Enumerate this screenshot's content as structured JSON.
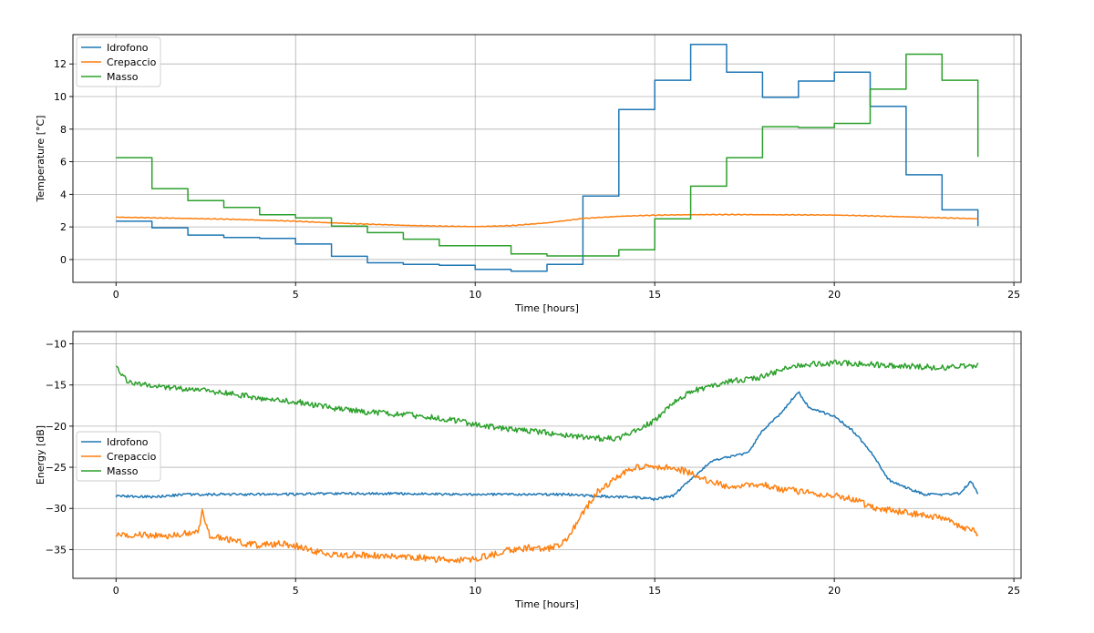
{
  "colors": {
    "Idrofono": "#1f77b4",
    "Crepaccio": "#ff7f0e",
    "Masso": "#2ca02c"
  },
  "chart_data": [
    {
      "type": "line",
      "xlabel": "Time [hours]",
      "ylabel": "Temperature [°C]",
      "xlim": [
        -1.2,
        25.2
      ],
      "ylim": [
        -1.4,
        13.8
      ],
      "xticks": [
        0,
        5,
        10,
        15,
        20,
        25
      ],
      "yticks": [
        0,
        2,
        4,
        6,
        8,
        10,
        12
      ],
      "xtick_labels": [
        "0",
        "5",
        "10",
        "15",
        "20",
        "25"
      ],
      "ytick_labels": [
        "0",
        "2",
        "4",
        "6",
        "8",
        "10",
        "12"
      ],
      "grid": true,
      "legend_position": "top-left",
      "series": [
        {
          "name": "Idrofono",
          "style": "step",
          "points": [
            [
              0,
              2.35
            ],
            [
              1,
              1.95
            ],
            [
              2,
              1.5
            ],
            [
              3,
              1.35
            ],
            [
              4,
              1.3
            ],
            [
              5,
              0.95
            ],
            [
              6,
              0.2
            ],
            [
              7,
              -0.2
            ],
            [
              8,
              -0.3
            ],
            [
              9,
              -0.35
            ],
            [
              10,
              -0.6
            ],
            [
              11,
              -0.72
            ],
            [
              12,
              -0.3
            ],
            [
              13,
              3.9
            ],
            [
              14,
              9.2
            ],
            [
              15,
              11.0
            ],
            [
              16,
              13.2
            ],
            [
              17,
              11.5
            ],
            [
              18,
              9.95
            ],
            [
              19,
              10.95
            ],
            [
              20,
              11.5
            ],
            [
              21,
              9.4
            ],
            [
              22,
              5.2
            ],
            [
              23,
              3.05
            ],
            [
              24,
              2.05
            ]
          ]
        },
        {
          "name": "Crepaccio",
          "style": "smooth",
          "points": [
            [
              0,
              2.6
            ],
            [
              1,
              2.56
            ],
            [
              2,
              2.52
            ],
            [
              3,
              2.48
            ],
            [
              4,
              2.42
            ],
            [
              5,
              2.35
            ],
            [
              6,
              2.25
            ],
            [
              7,
              2.17
            ],
            [
              8,
              2.1
            ],
            [
              9,
              2.05
            ],
            [
              10,
              2.02
            ],
            [
              11,
              2.08
            ],
            [
              12,
              2.25
            ],
            [
              13,
              2.52
            ],
            [
              14,
              2.65
            ],
            [
              15,
              2.72
            ],
            [
              16,
              2.75
            ],
            [
              17,
              2.76
            ],
            [
              18,
              2.75
            ],
            [
              19,
              2.74
            ],
            [
              20,
              2.73
            ],
            [
              21,
              2.68
            ],
            [
              22,
              2.62
            ],
            [
              23,
              2.56
            ],
            [
              24,
              2.5
            ]
          ]
        },
        {
          "name": "Masso",
          "style": "step",
          "points": [
            [
              0,
              6.25
            ],
            [
              1,
              4.35
            ],
            [
              2,
              3.62
            ],
            [
              3,
              3.2
            ],
            [
              4,
              2.75
            ],
            [
              5,
              2.55
            ],
            [
              6,
              2.05
            ],
            [
              7,
              1.65
            ],
            [
              8,
              1.25
            ],
            [
              9,
              0.85
            ],
            [
              10,
              0.85
            ],
            [
              11,
              0.35
            ],
            [
              12,
              0.22
            ],
            [
              13,
              0.22
            ],
            [
              14,
              0.6
            ],
            [
              15,
              2.5
            ],
            [
              16,
              4.5
            ],
            [
              17,
              6.25
            ],
            [
              18,
              8.15
            ],
            [
              19,
              8.1
            ],
            [
              20,
              8.35
            ],
            [
              21,
              10.45
            ],
            [
              22,
              12.6
            ],
            [
              23,
              11.0
            ],
            [
              24,
              6.3
            ]
          ]
        }
      ]
    },
    {
      "type": "line",
      "xlabel": "Time [hours]",
      "ylabel": "Energy [dB]",
      "xlim": [
        -1.2,
        25.2
      ],
      "ylim": [
        -38.5,
        -8.5
      ],
      "xticks": [
        0,
        5,
        10,
        15,
        20,
        25
      ],
      "yticks": [
        -35,
        -30,
        -25,
        -20,
        -15,
        -10
      ],
      "xtick_labels": [
        "0",
        "5",
        "10",
        "15",
        "20",
        "25"
      ],
      "ytick_labels": [
        "−35",
        "−30",
        "−25",
        "−20",
        "−15",
        "−10"
      ],
      "grid": true,
      "legend_position": "center-left",
      "series": [
        {
          "name": "Idrofono",
          "style": "noisy",
          "noise": 0.15,
          "points": [
            [
              0,
              -28.5
            ],
            [
              1,
              -28.6
            ],
            [
              2,
              -28.3
            ],
            [
              4,
              -28.3
            ],
            [
              6,
              -28.2
            ],
            [
              8,
              -28.2
            ],
            [
              10,
              -28.3
            ],
            [
              12,
              -28.3
            ],
            [
              12.6,
              -28.3
            ],
            [
              13.4,
              -28.5
            ],
            [
              14,
              -28.6
            ],
            [
              14.6,
              -28.7
            ],
            [
              15,
              -28.9
            ],
            [
              15.5,
              -28.5
            ],
            [
              16,
              -26.5
            ],
            [
              16.6,
              -24.2
            ],
            [
              17,
              -23.8
            ],
            [
              17.6,
              -23.3
            ],
            [
              18,
              -20.5
            ],
            [
              18.5,
              -18.5
            ],
            [
              19,
              -15.8
            ],
            [
              19.3,
              -17.8
            ],
            [
              19.6,
              -18.2
            ],
            [
              20,
              -18.8
            ],
            [
              20.5,
              -20.5
            ],
            [
              21,
              -23
            ],
            [
              21.5,
              -26.5
            ],
            [
              22,
              -27.5
            ],
            [
              22.5,
              -28.3
            ],
            [
              23,
              -28.3
            ],
            [
              23.5,
              -28.2
            ],
            [
              23.8,
              -26.6
            ],
            [
              24,
              -28.3
            ]
          ]
        },
        {
          "name": "Crepaccio",
          "style": "noisy",
          "noise": 0.4,
          "points": [
            [
              0,
              -33.2
            ],
            [
              0.5,
              -33.2
            ],
            [
              1,
              -33.3
            ],
            [
              1.5,
              -33.4
            ],
            [
              2,
              -33.0
            ],
            [
              2.3,
              -32.8
            ],
            [
              2.4,
              -30.2
            ],
            [
              2.6,
              -33.2
            ],
            [
              3,
              -33.6
            ],
            [
              3.5,
              -34.2
            ],
            [
              4,
              -34.5
            ],
            [
              4.5,
              -34.3
            ],
            [
              5,
              -34.5
            ],
            [
              5.5,
              -35.2
            ],
            [
              6,
              -35.6
            ],
            [
              7,
              -35.7
            ],
            [
              8,
              -35.8
            ],
            [
              9,
              -36.2
            ],
            [
              10,
              -36.2
            ],
            [
              10.5,
              -35.6
            ],
            [
              11,
              -35.0
            ],
            [
              11.5,
              -34.8
            ],
            [
              12,
              -35.0
            ],
            [
              12.3,
              -34.5
            ],
            [
              12.6,
              -33.5
            ],
            [
              13,
              -30.5
            ],
            [
              13.4,
              -28
            ],
            [
              14,
              -26
            ],
            [
              14.5,
              -24.9
            ],
            [
              15,
              -25.1
            ],
            [
              15.5,
              -24.9
            ],
            [
              16,
              -25.8
            ],
            [
              16.5,
              -26.6
            ],
            [
              17,
              -27.3
            ],
            [
              17.5,
              -27.2
            ],
            [
              18,
              -27.0
            ],
            [
              18.5,
              -27.7
            ],
            [
              19,
              -27.9
            ],
            [
              20,
              -28.4
            ],
            [
              20.5,
              -28.8
            ],
            [
              21,
              -29.8
            ],
            [
              22,
              -30.5
            ],
            [
              23,
              -31.2
            ],
            [
              24,
              -33.0
            ]
          ]
        },
        {
          "name": "Masso",
          "style": "noisy",
          "noise": 0.35,
          "points": [
            [
              0,
              -12.8
            ],
            [
              0.3,
              -14.5
            ],
            [
              1,
              -15.2
            ],
            [
              2,
              -15.5
            ],
            [
              3,
              -15.9
            ],
            [
              4,
              -16.6
            ],
            [
              5,
              -17.0
            ],
            [
              6,
              -17.8
            ],
            [
              7,
              -18.3
            ],
            [
              8,
              -18.6
            ],
            [
              9,
              -19.0
            ],
            [
              10,
              -19.8
            ],
            [
              11,
              -20.4
            ],
            [
              12,
              -20.8
            ],
            [
              13,
              -21.3
            ],
            [
              13.5,
              -21.5
            ],
            [
              14,
              -21.5
            ],
            [
              14.5,
              -20.5
            ],
            [
              15,
              -19.3
            ],
            [
              15.5,
              -17.2
            ],
            [
              16,
              -15.8
            ],
            [
              16.5,
              -15.2
            ],
            [
              17,
              -14.6
            ],
            [
              18,
              -14.0
            ],
            [
              18.5,
              -13.2
            ],
            [
              19,
              -12.6
            ],
            [
              20,
              -12.3
            ],
            [
              21,
              -12.5
            ],
            [
              22,
              -12.7
            ],
            [
              23,
              -12.9
            ],
            [
              24,
              -12.6
            ]
          ]
        }
      ]
    }
  ]
}
